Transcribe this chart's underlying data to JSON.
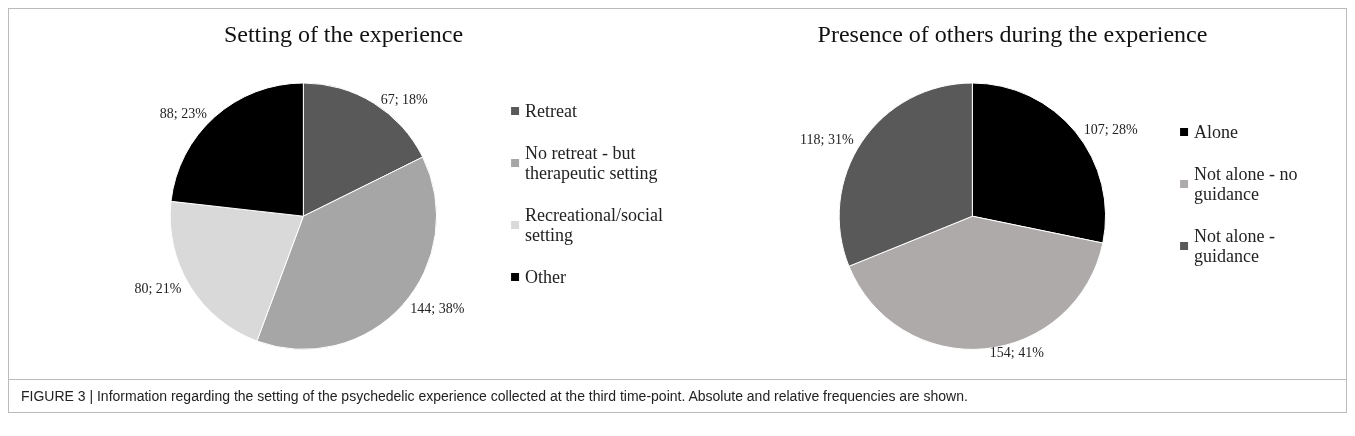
{
  "chart_data": [
    {
      "type": "pie",
      "title": "Setting of the experience",
      "categories": [
        "Retreat",
        "No retreat - but therapeutic setting",
        "Recreational/social setting",
        "Other"
      ],
      "values": [
        67,
        144,
        80,
        88
      ],
      "colors": [
        "#595959",
        "#a6a6a6",
        "#d9d9d9",
        "#000000"
      ],
      "value_labels": [
        "67; 18%",
        "144; 38%",
        "80; 21%",
        "88; 23%"
      ],
      "legend": "right",
      "annotations": [
        "FIGURE 3 | Information regarding the setting of the psychedelic experience collected at the third time-point. Absolute and relative frequencies are shown."
      ]
    },
    {
      "type": "pie",
      "title": "Presence of others during the experience",
      "categories": [
        "Alone",
        "Not alone - no guidance",
        "Not alone - guidance"
      ],
      "values": [
        107,
        154,
        118
      ],
      "colors": [
        "#000000",
        "#aeaaaa",
        "#595959"
      ],
      "value_labels": [
        "107; 28%",
        "154; 41%",
        "118; 31%"
      ],
      "legend": "right"
    }
  ]
}
